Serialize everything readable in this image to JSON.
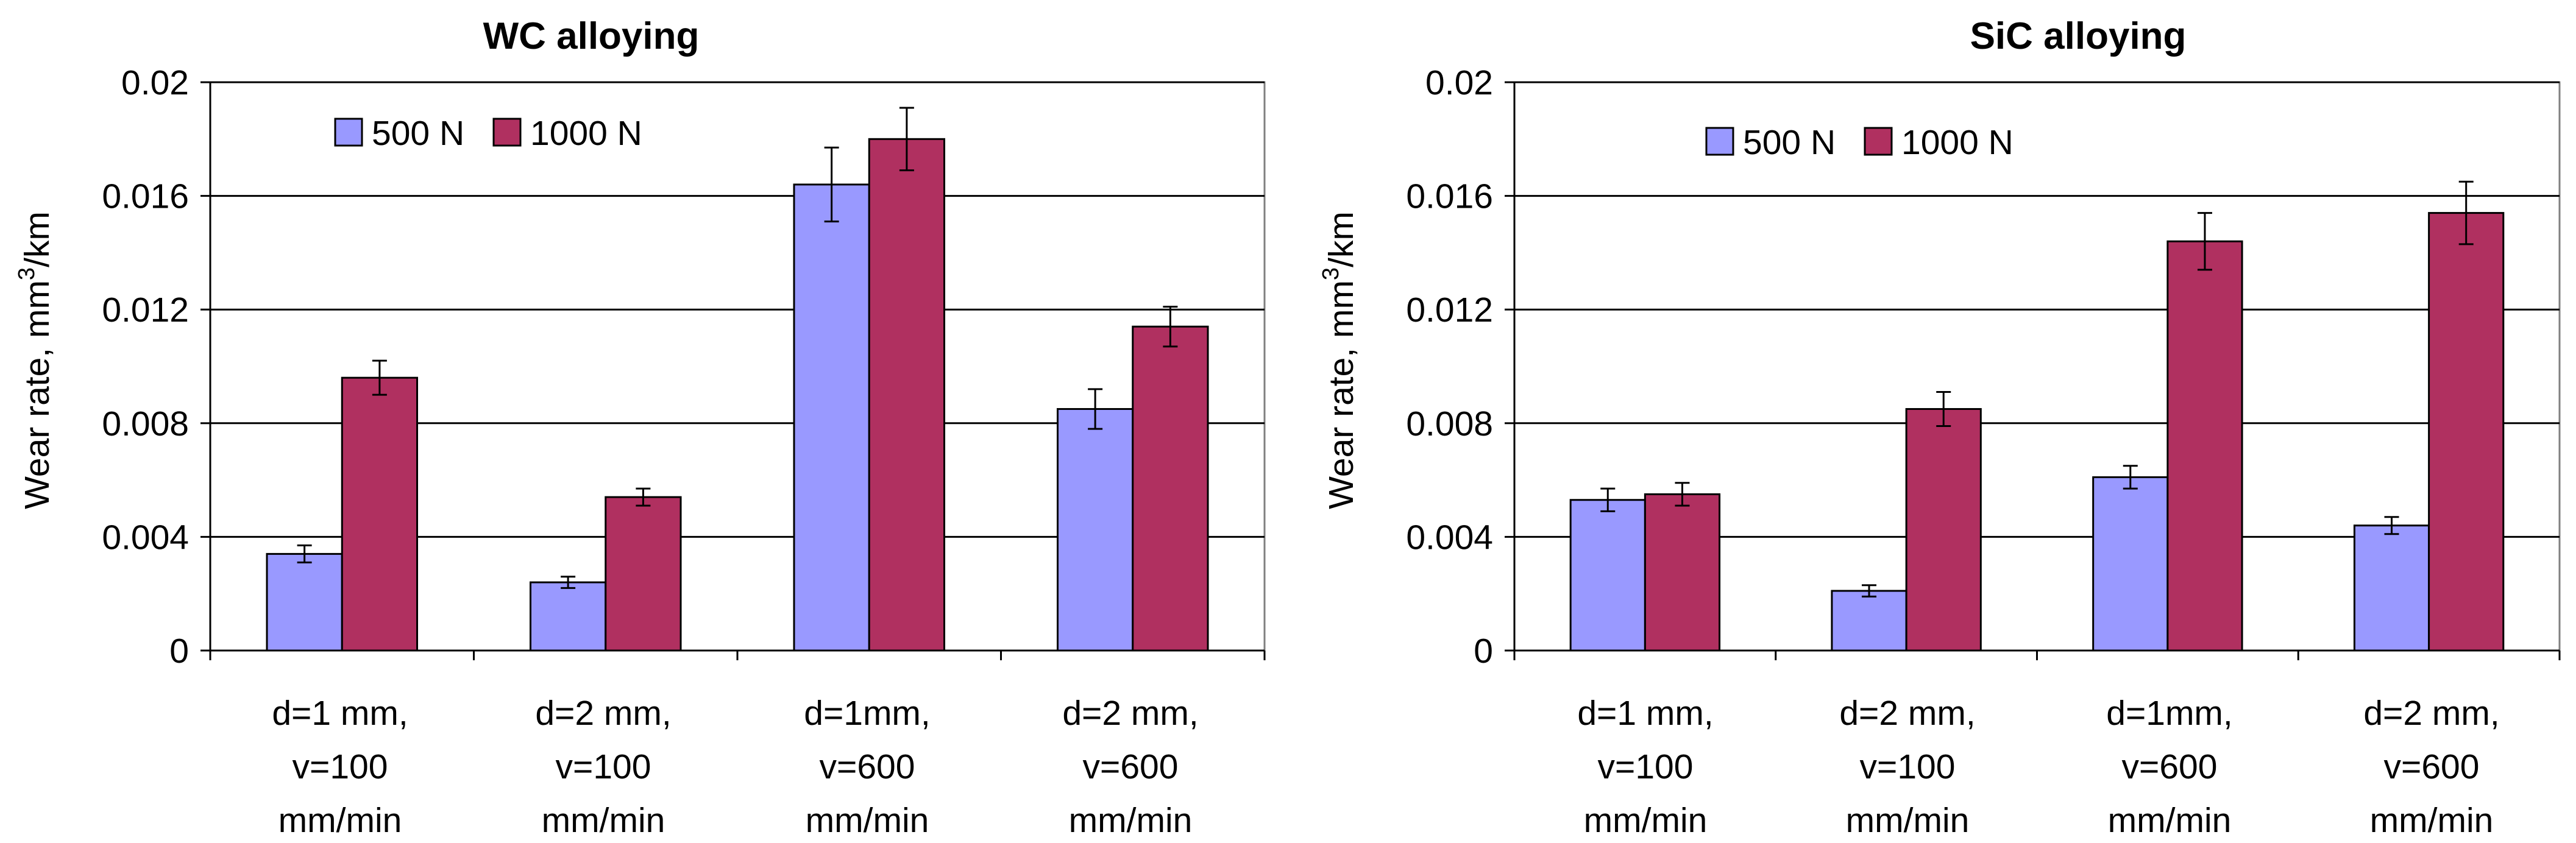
{
  "colors": {
    "series_500": "#9999ff",
    "series_1000": "#b03060",
    "grid": "#000000"
  },
  "chart_data": [
    {
      "type": "bar",
      "title": "WC alloying",
      "ylabel": {
        "main": "Wear rate, mm",
        "sup": "3",
        "tail": "/km"
      },
      "ylim": [
        0,
        0.02
      ],
      "yticks": [
        "0",
        "0.004",
        "0.008",
        "0.012",
        "0.016",
        "0.02"
      ],
      "grid": "horizontal",
      "legend": "top-left",
      "categories": [
        [
          "d=1 mm,",
          "v=100",
          "mm/min"
        ],
        [
          "d=2 mm,",
          "v=100",
          "mm/min"
        ],
        [
          "d=1mm,",
          "v=600",
          "mm/min"
        ],
        [
          "d=2 mm,",
          "v=600",
          "mm/min"
        ]
      ],
      "series": [
        {
          "name": "500 N",
          "values": [
            0.0034,
            0.0024,
            0.0164,
            0.0085
          ],
          "errors": [
            0.0003,
            0.0002,
            0.0013,
            0.0007
          ]
        },
        {
          "name": "1000 N",
          "values": [
            0.0096,
            0.0054,
            0.018,
            0.0114
          ],
          "errors": [
            0.0006,
            0.0003,
            0.0011,
            0.0007
          ]
        }
      ]
    },
    {
      "type": "bar",
      "title": "SiC alloying",
      "ylabel": {
        "main": "Wear rate, mm",
        "sup": "3",
        "tail": "/km"
      },
      "ylim": [
        0,
        0.02
      ],
      "yticks": [
        "0",
        "0.004",
        "0.008",
        "0.012",
        "0.016",
        "0.02"
      ],
      "grid": "horizontal",
      "legend": "top-left",
      "categories": [
        [
          "d=1 mm,",
          "v=100",
          "mm/min"
        ],
        [
          "d=2 mm,",
          "v=100",
          "mm/min"
        ],
        [
          "d=1mm,",
          "v=600",
          "mm/min"
        ],
        [
          "d=2 mm,",
          "v=600",
          "mm/min"
        ]
      ],
      "series": [
        {
          "name": "500 N",
          "values": [
            0.0053,
            0.0021,
            0.0061,
            0.0044
          ],
          "errors": [
            0.0004,
            0.0002,
            0.0004,
            0.0003
          ]
        },
        {
          "name": "1000 N",
          "values": [
            0.0055,
            0.0085,
            0.0144,
            0.0154
          ],
          "errors": [
            0.0004,
            0.0006,
            0.001,
            0.0011
          ]
        }
      ]
    }
  ]
}
